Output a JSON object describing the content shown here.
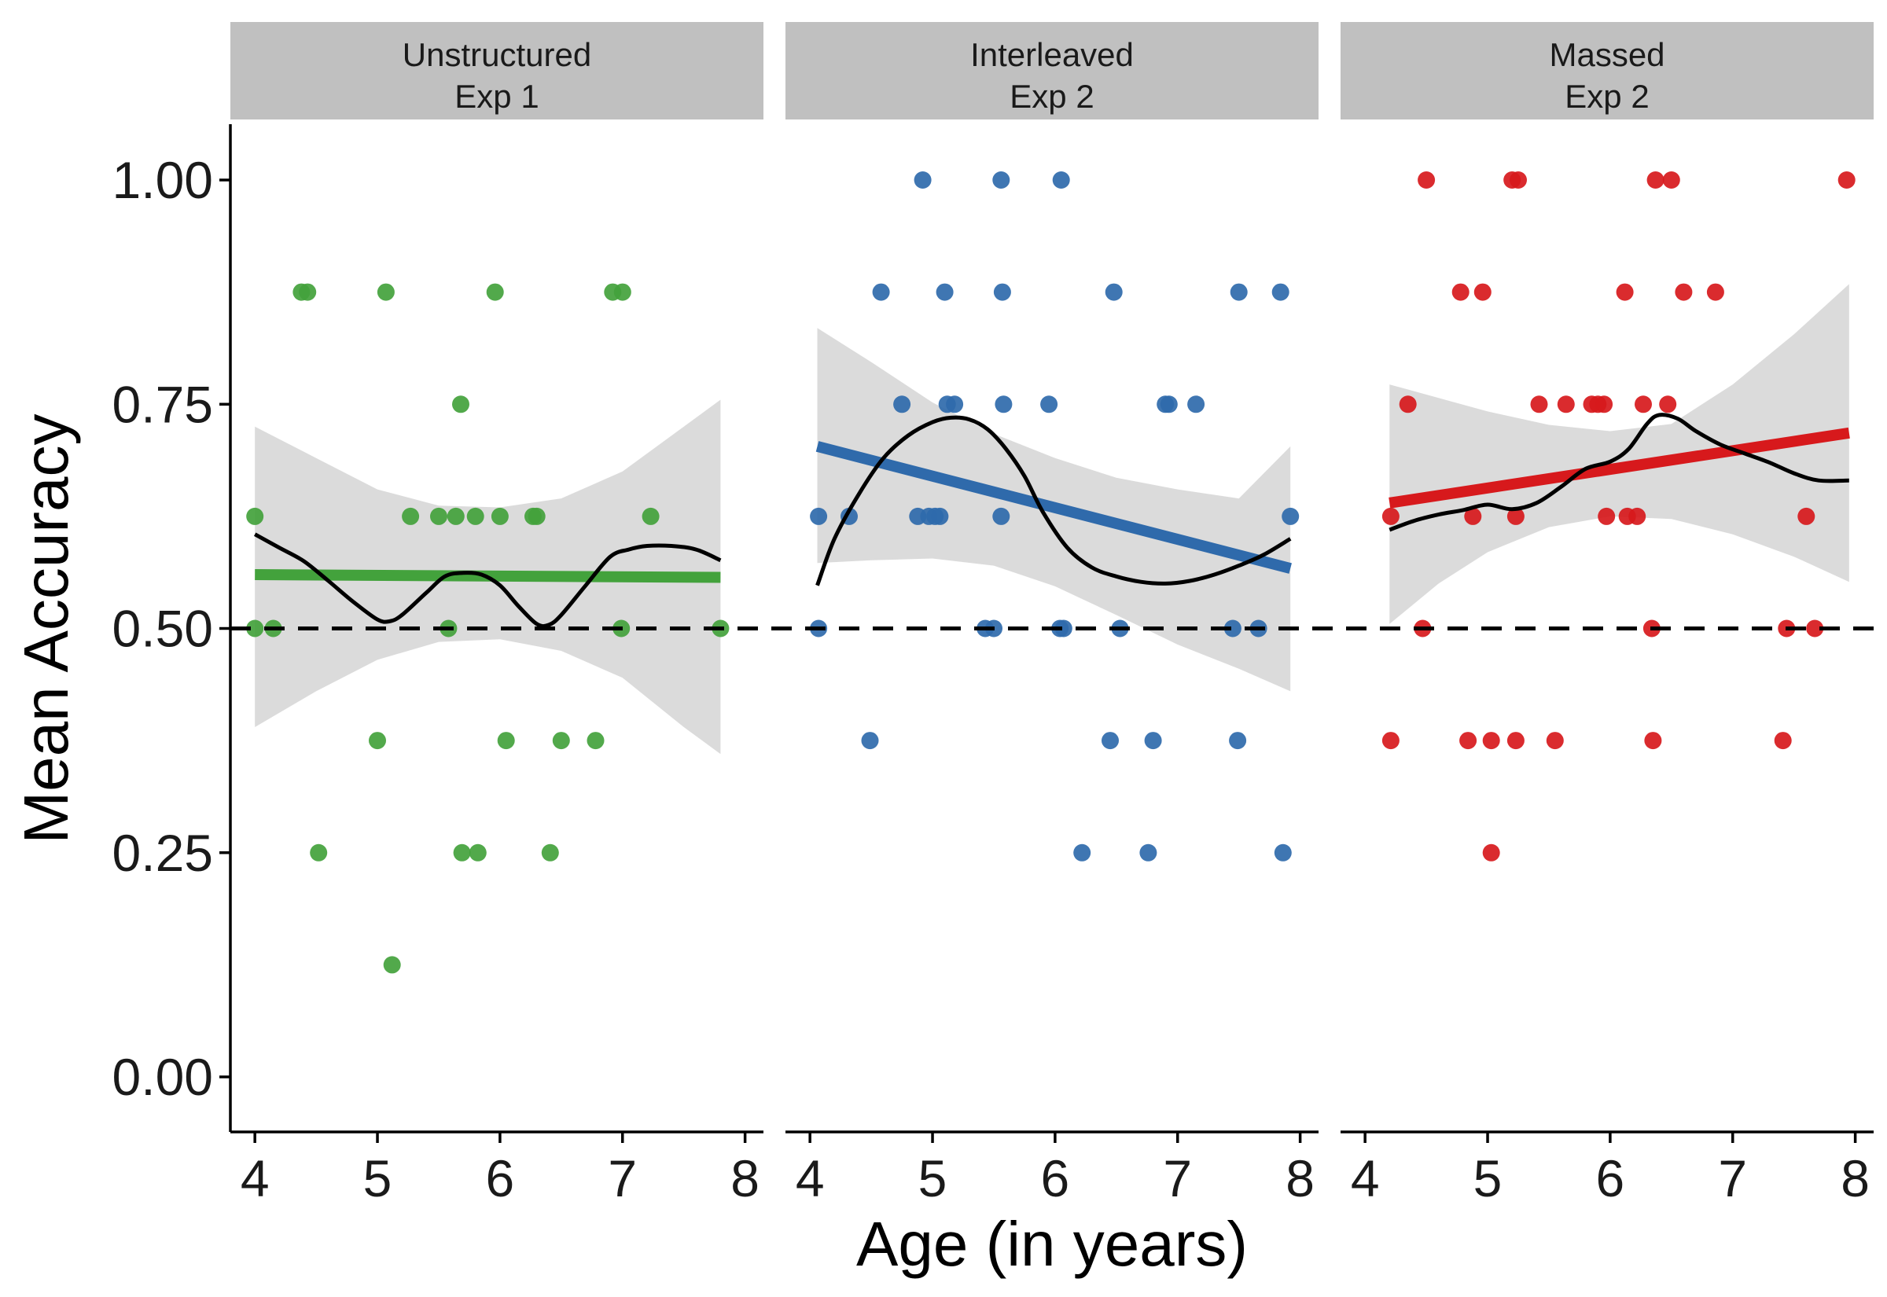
{
  "chart_data": {
    "type": "scatter",
    "facet": "panels",
    "xlabel": "Age (in years)",
    "ylabel": "Mean Accuracy",
    "xlim": [
      3.8,
      8.15
    ],
    "ylim": [
      -0.06,
      1.06
    ],
    "x_ticks": [
      "4",
      "5",
      "6",
      "7",
      "8"
    ],
    "y_ticks": [
      "0.00",
      "0.25",
      "0.50",
      "0.75",
      "1.00"
    ],
    "reference_line": {
      "y": 0.5,
      "style": "dashed",
      "color": "#000000"
    },
    "panels": [
      {
        "strip_line1": "Unstructured",
        "strip_line2": "Exp 1",
        "color": "#43a23c",
        "linear_fit": {
          "x": [
            4.0,
            7.8
          ],
          "y": [
            0.56,
            0.557
          ]
        },
        "band": {
          "x": [
            4.0,
            4.5,
            5.0,
            5.5,
            6.0,
            6.5,
            7.0,
            7.5,
            7.8
          ],
          "lower": [
            0.39,
            0.43,
            0.465,
            0.485,
            0.488,
            0.475,
            0.445,
            0.39,
            0.36
          ],
          "upper": [
            0.725,
            0.69,
            0.655,
            0.637,
            0.635,
            0.645,
            0.675,
            0.725,
            0.755
          ]
        },
        "smooth": {
          "x": [
            4.0,
            4.2,
            4.4,
            4.6,
            4.8,
            5.0,
            5.1,
            5.2,
            5.4,
            5.55,
            5.7,
            5.85,
            6.0,
            6.15,
            6.3,
            6.4,
            6.5,
            6.7,
            6.9,
            7.05,
            7.2,
            7.4,
            7.6,
            7.8
          ],
          "y": [
            0.605,
            0.59,
            0.575,
            0.553,
            0.53,
            0.51,
            0.508,
            0.515,
            0.54,
            0.558,
            0.562,
            0.56,
            0.548,
            0.525,
            0.505,
            0.504,
            0.515,
            0.548,
            0.58,
            0.588,
            0.592,
            0.592,
            0.588,
            0.576
          ]
        },
        "points": [
          {
            "x": 4.0,
            "y": 0.625
          },
          {
            "x": 4.0,
            "y": 0.5
          },
          {
            "x": 4.15,
            "y": 0.5
          },
          {
            "x": 4.38,
            "y": 0.875
          },
          {
            "x": 4.43,
            "y": 0.875
          },
          {
            "x": 4.52,
            "y": 0.25
          },
          {
            "x": 5.0,
            "y": 0.375
          },
          {
            "x": 5.07,
            "y": 0.875
          },
          {
            "x": 5.12,
            "y": 0.125
          },
          {
            "x": 5.27,
            "y": 0.625
          },
          {
            "x": 5.5,
            "y": 0.625
          },
          {
            "x": 5.58,
            "y": 0.5
          },
          {
            "x": 5.64,
            "y": 0.625
          },
          {
            "x": 5.68,
            "y": 0.75
          },
          {
            "x": 5.69,
            "y": 0.25
          },
          {
            "x": 5.8,
            "y": 0.625
          },
          {
            "x": 5.82,
            "y": 0.25
          },
          {
            "x": 5.96,
            "y": 0.875
          },
          {
            "x": 6.0,
            "y": 0.625
          },
          {
            "x": 6.05,
            "y": 0.375
          },
          {
            "x": 6.27,
            "y": 0.625
          },
          {
            "x": 6.3,
            "y": 0.625
          },
          {
            "x": 6.41,
            "y": 0.25
          },
          {
            "x": 6.5,
            "y": 0.375
          },
          {
            "x": 6.78,
            "y": 0.375
          },
          {
            "x": 6.92,
            "y": 0.875
          },
          {
            "x": 6.99,
            "y": 0.5
          },
          {
            "x": 7.0,
            "y": 0.875
          },
          {
            "x": 7.23,
            "y": 0.625
          },
          {
            "x": 7.8,
            "y": 0.5
          }
        ]
      },
      {
        "strip_line1": "Interleaved",
        "strip_line2": "Exp 2",
        "color": "#2f6aab",
        "linear_fit": {
          "x": [
            4.06,
            7.92
          ],
          "y": [
            0.703,
            0.567
          ]
        },
        "band": {
          "x": [
            4.06,
            4.5,
            5.0,
            5.5,
            6.0,
            6.5,
            7.0,
            7.5,
            7.92
          ],
          "lower": [
            0.573,
            0.576,
            0.578,
            0.57,
            0.547,
            0.515,
            0.482,
            0.455,
            0.43
          ],
          "upper": [
            0.835,
            0.797,
            0.752,
            0.717,
            0.69,
            0.668,
            0.655,
            0.645,
            0.703
          ]
        },
        "smooth": {
          "x": [
            4.06,
            4.2,
            4.4,
            4.6,
            4.8,
            5.0,
            5.15,
            5.3,
            5.45,
            5.6,
            5.75,
            5.9,
            6.1,
            6.3,
            6.5,
            6.7,
            6.9,
            7.1,
            7.3,
            7.5,
            7.7,
            7.92
          ],
          "y": [
            0.548,
            0.6,
            0.65,
            0.69,
            0.715,
            0.73,
            0.735,
            0.733,
            0.722,
            0.7,
            0.67,
            0.63,
            0.59,
            0.568,
            0.558,
            0.552,
            0.55,
            0.553,
            0.56,
            0.57,
            0.582,
            0.6
          ]
        },
        "points": [
          {
            "x": 4.07,
            "y": 0.625
          },
          {
            "x": 4.07,
            "y": 0.5
          },
          {
            "x": 4.32,
            "y": 0.625
          },
          {
            "x": 4.49,
            "y": 0.375
          },
          {
            "x": 4.58,
            "y": 0.875
          },
          {
            "x": 4.75,
            "y": 0.75
          },
          {
            "x": 4.88,
            "y": 0.625
          },
          {
            "x": 4.92,
            "y": 1.0
          },
          {
            "x": 4.97,
            "y": 0.625
          },
          {
            "x": 5.02,
            "y": 0.625
          },
          {
            "x": 5.06,
            "y": 0.625
          },
          {
            "x": 5.1,
            "y": 0.875
          },
          {
            "x": 5.12,
            "y": 0.75
          },
          {
            "x": 5.18,
            "y": 0.75
          },
          {
            "x": 5.43,
            "y": 0.5
          },
          {
            "x": 5.5,
            "y": 0.5
          },
          {
            "x": 5.56,
            "y": 0.625
          },
          {
            "x": 5.56,
            "y": 1.0
          },
          {
            "x": 5.57,
            "y": 0.875
          },
          {
            "x": 5.58,
            "y": 0.75
          },
          {
            "x": 5.95,
            "y": 0.75
          },
          {
            "x": 6.04,
            "y": 0.5
          },
          {
            "x": 6.05,
            "y": 1.0
          },
          {
            "x": 6.07,
            "y": 0.5
          },
          {
            "x": 6.22,
            "y": 0.25
          },
          {
            "x": 6.45,
            "y": 0.375
          },
          {
            "x": 6.48,
            "y": 0.875
          },
          {
            "x": 6.53,
            "y": 0.5
          },
          {
            "x": 6.76,
            "y": 0.25
          },
          {
            "x": 6.8,
            "y": 0.375
          },
          {
            "x": 6.9,
            "y": 0.75
          },
          {
            "x": 6.93,
            "y": 0.75
          },
          {
            "x": 7.15,
            "y": 0.75
          },
          {
            "x": 7.45,
            "y": 0.5
          },
          {
            "x": 7.49,
            "y": 0.375
          },
          {
            "x": 7.5,
            "y": 0.875
          },
          {
            "x": 7.66,
            "y": 0.5
          },
          {
            "x": 7.84,
            "y": 0.875
          },
          {
            "x": 7.86,
            "y": 0.25
          },
          {
            "x": 7.92,
            "y": 0.625
          }
        ]
      },
      {
        "strip_line1": "Massed",
        "strip_line2": "Exp 2",
        "color": "#d7191c",
        "linear_fit": {
          "x": [
            4.2,
            7.95
          ],
          "y": [
            0.64,
            0.718
          ]
        },
        "band": {
          "x": [
            4.2,
            4.6,
            5.0,
            5.5,
            6.0,
            6.5,
            7.0,
            7.5,
            7.95
          ],
          "lower": [
            0.505,
            0.55,
            0.585,
            0.613,
            0.625,
            0.622,
            0.605,
            0.58,
            0.552
          ],
          "upper": [
            0.772,
            0.757,
            0.742,
            0.727,
            0.72,
            0.728,
            0.772,
            0.828,
            0.884
          ]
        },
        "smooth": {
          "x": [
            4.2,
            4.4,
            4.6,
            4.8,
            5.0,
            5.2,
            5.4,
            5.6,
            5.8,
            6.0,
            6.15,
            6.3,
            6.4,
            6.55,
            6.7,
            6.9,
            7.1,
            7.3,
            7.5,
            7.7,
            7.95
          ],
          "y": [
            0.61,
            0.62,
            0.627,
            0.632,
            0.638,
            0.633,
            0.64,
            0.658,
            0.678,
            0.686,
            0.7,
            0.728,
            0.738,
            0.734,
            0.72,
            0.705,
            0.695,
            0.685,
            0.673,
            0.665,
            0.665
          ]
        },
        "points": [
          {
            "x": 4.21,
            "y": 0.625
          },
          {
            "x": 4.21,
            "y": 0.375
          },
          {
            "x": 4.35,
            "y": 0.75
          },
          {
            "x": 4.47,
            "y": 0.5
          },
          {
            "x": 4.5,
            "y": 1.0
          },
          {
            "x": 4.78,
            "y": 0.875
          },
          {
            "x": 4.84,
            "y": 0.375
          },
          {
            "x": 4.88,
            "y": 0.625
          },
          {
            "x": 4.96,
            "y": 0.875
          },
          {
            "x": 5.03,
            "y": 0.375
          },
          {
            "x": 5.03,
            "y": 0.25
          },
          {
            "x": 5.2,
            "y": 1.0
          },
          {
            "x": 5.23,
            "y": 0.375
          },
          {
            "x": 5.23,
            "y": 0.625
          },
          {
            "x": 5.25,
            "y": 1.0
          },
          {
            "x": 5.42,
            "y": 0.75
          },
          {
            "x": 5.55,
            "y": 0.375
          },
          {
            "x": 5.64,
            "y": 0.75
          },
          {
            "x": 5.85,
            "y": 0.75
          },
          {
            "x": 5.9,
            "y": 0.75
          },
          {
            "x": 5.95,
            "y": 0.75
          },
          {
            "x": 5.97,
            "y": 0.625
          },
          {
            "x": 6.12,
            "y": 0.875
          },
          {
            "x": 6.14,
            "y": 0.625
          },
          {
            "x": 6.22,
            "y": 0.625
          },
          {
            "x": 6.27,
            "y": 0.75
          },
          {
            "x": 6.34,
            "y": 0.5
          },
          {
            "x": 6.35,
            "y": 0.375
          },
          {
            "x": 6.37,
            "y": 1.0
          },
          {
            "x": 6.47,
            "y": 0.75
          },
          {
            "x": 6.5,
            "y": 1.0
          },
          {
            "x": 6.6,
            "y": 0.875
          },
          {
            "x": 6.86,
            "y": 0.875
          },
          {
            "x": 7.41,
            "y": 0.375
          },
          {
            "x": 7.44,
            "y": 0.5
          },
          {
            "x": 7.6,
            "y": 0.625
          },
          {
            "x": 7.67,
            "y": 0.5
          },
          {
            "x": 7.93,
            "y": 1.0
          }
        ]
      }
    ]
  }
}
